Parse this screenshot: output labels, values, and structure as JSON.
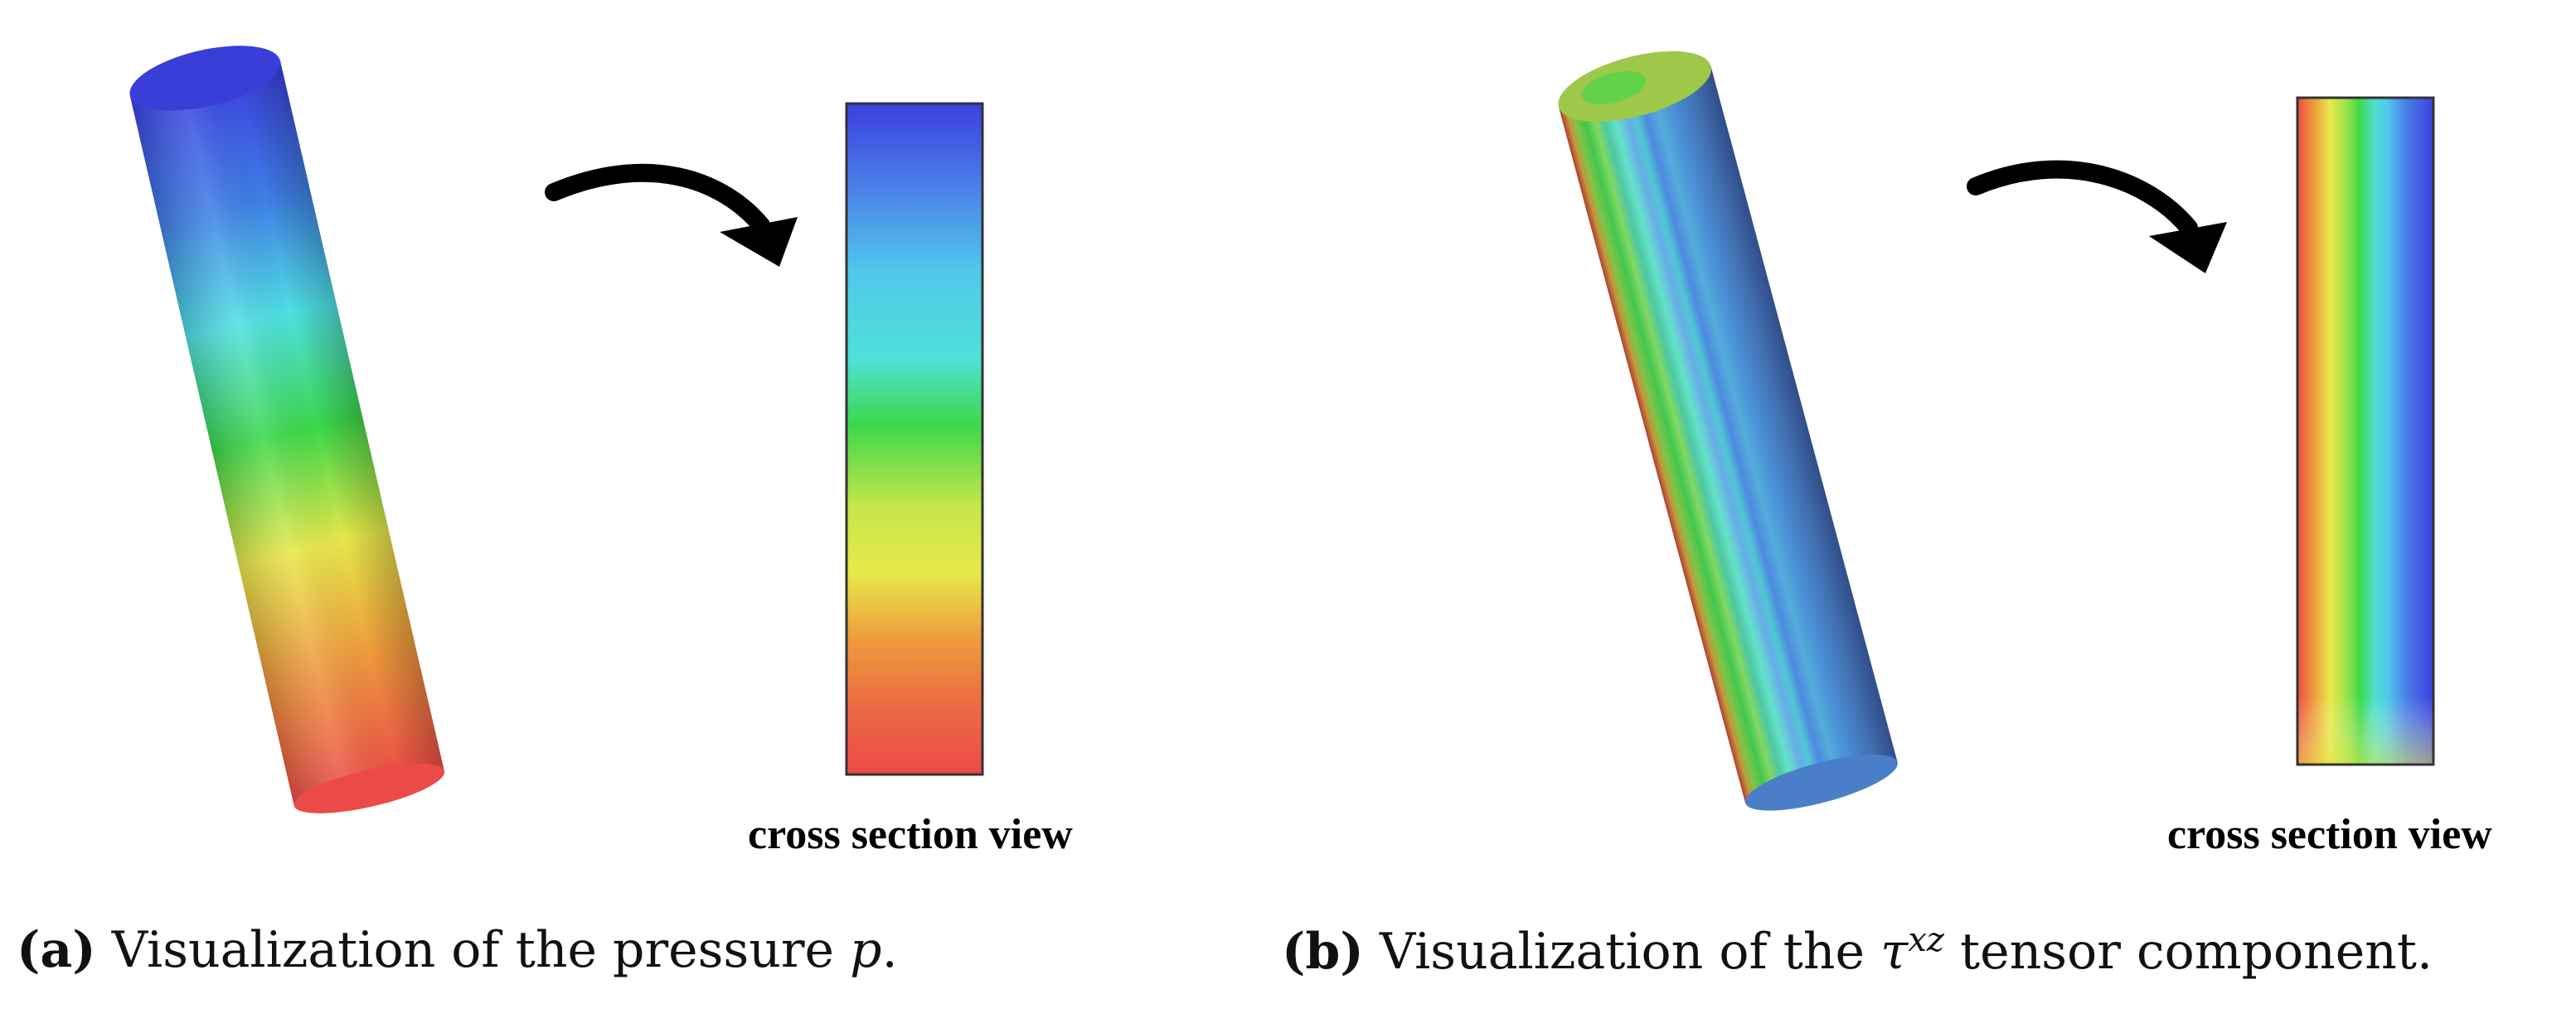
{
  "panel_a": {
    "cross_section_label": "cross section view",
    "caption_tag": "(a)",
    "caption_text": "Visualization of the pressure",
    "caption_symbol": "p",
    "caption_end": "."
  },
  "panel_b": {
    "cross_section_label": "cross section view",
    "caption_tag": "(b)",
    "caption_text": "Visualization of the",
    "caption_symbol": "τ",
    "caption_superscript": "xz",
    "caption_end": "tensor component."
  },
  "colormap": [
    "#3b3fe0",
    "#3fa0e8",
    "#4fe0e4",
    "#3cd84a",
    "#e8e84a",
    "#ee9a3c",
    "#ec4a48"
  ]
}
